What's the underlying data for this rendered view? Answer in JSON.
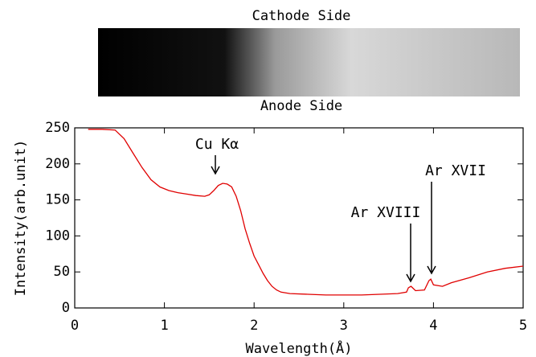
{
  "image": {
    "top_label": "Cathode Side",
    "bottom_label": "Anode Side"
  },
  "chart_data": {
    "type": "line",
    "x": [
      0.15,
      0.3,
      0.45,
      0.55,
      0.65,
      0.75,
      0.85,
      0.95,
      1.05,
      1.15,
      1.25,
      1.35,
      1.45,
      1.5,
      1.55,
      1.6,
      1.65,
      1.7,
      1.75,
      1.8,
      1.85,
      1.9,
      1.95,
      2.0,
      2.05,
      2.1,
      2.15,
      2.2,
      2.25,
      2.3,
      2.4,
      2.6,
      2.8,
      3.0,
      3.2,
      3.4,
      3.6,
      3.7,
      3.72,
      3.75,
      3.8,
      3.9,
      3.95,
      3.97,
      4.0,
      4.1,
      4.2,
      4.4,
      4.6,
      4.8,
      5.0
    ],
    "values": [
      248,
      248,
      247,
      235,
      215,
      195,
      178,
      168,
      163,
      160,
      158,
      156,
      155,
      157,
      163,
      170,
      173,
      172,
      168,
      155,
      135,
      110,
      90,
      72,
      60,
      48,
      38,
      30,
      25,
      22,
      20,
      19,
      18,
      18,
      18,
      19,
      20,
      22,
      28,
      30,
      24,
      25,
      38,
      40,
      32,
      30,
      35,
      42,
      50,
      55,
      58
    ],
    "color": "#e00000",
    "xlabel": "Wavelength(Å)",
    "ylabel": "Intensity(arb.unit)",
    "xlim": [
      0,
      5
    ],
    "ylim": [
      0,
      250
    ],
    "xticks": [
      0,
      1,
      2,
      3,
      4,
      5
    ],
    "yticks": [
      0,
      50,
      100,
      150,
      200,
      250
    ],
    "annotations": [
      "Cu Kα",
      "Ar XVIII",
      "Ar XVII"
    ]
  }
}
